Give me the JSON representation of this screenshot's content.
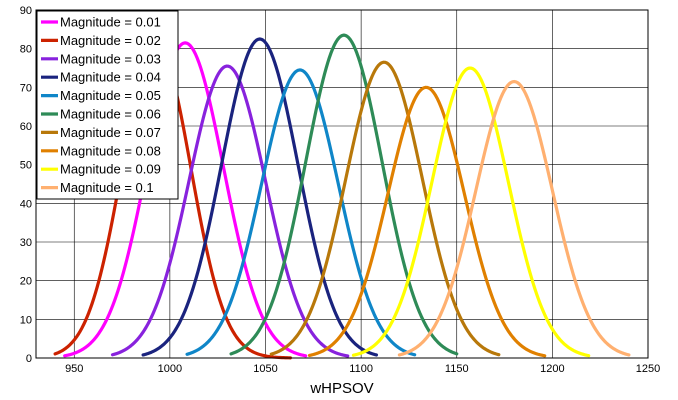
{
  "chart_data": {
    "type": "line",
    "title": "",
    "xlabel": "wHPSOV",
    "ylabel": "",
    "xlim": [
      930,
      1250
    ],
    "ylim": [
      0,
      90
    ],
    "xticks": [
      950,
      1000,
      1050,
      1100,
      1150,
      1200,
      1250
    ],
    "yticks": [
      0,
      10,
      20,
      30,
      40,
      50,
      60,
      70,
      80,
      90
    ],
    "grid": true,
    "legend_position": "top-left",
    "series": [
      {
        "name": "Magnitude = 0.01",
        "color": "#ff00ff",
        "peak_x": 1008,
        "peak_y": 81.5,
        "sigma": 20,
        "x_start": 945,
        "x_end": 1071
      },
      {
        "name": "Magnitude = 0.02",
        "color": "#cc2200",
        "peak_x": 993,
        "peak_y": 81,
        "sigma": 18,
        "x_start": 940,
        "x_end": 1063
      },
      {
        "name": "Magnitude = 0.03",
        "color": "#8822dd",
        "peak_x": 1030,
        "peak_y": 75.5,
        "sigma": 20,
        "x_start": 970,
        "x_end": 1093
      },
      {
        "name": "Magnitude = 0.04",
        "color": "#1a237e",
        "peak_x": 1047,
        "peak_y": 82.5,
        "sigma": 20,
        "x_start": 986,
        "x_end": 1108
      },
      {
        "name": "Magnitude = 0.05",
        "color": "#0f86c8",
        "peak_x": 1068,
        "peak_y": 74.5,
        "sigma": 20,
        "x_start": 1009,
        "x_end": 1128
      },
      {
        "name": "Magnitude = 0.06",
        "color": "#2e8b57",
        "peak_x": 1091,
        "peak_y": 83.5,
        "sigma": 20,
        "x_start": 1032,
        "x_end": 1150
      },
      {
        "name": "Magnitude = 0.07",
        "color": "#b8780a",
        "peak_x": 1112,
        "peak_y": 76.5,
        "sigma": 20,
        "x_start": 1053,
        "x_end": 1172
      },
      {
        "name": "Magnitude = 0.08",
        "color": "#e08000",
        "peak_x": 1134,
        "peak_y": 70,
        "sigma": 20,
        "x_start": 1073,
        "x_end": 1196
      },
      {
        "name": "Magnitude = 0.09",
        "color": "#ffff00",
        "peak_x": 1157,
        "peak_y": 75,
        "sigma": 20,
        "x_start": 1096,
        "x_end": 1219
      },
      {
        "name": "Magnitude = 0.1",
        "color": "#ffb070",
        "peak_x": 1180,
        "peak_y": 71.5,
        "sigma": 20,
        "x_start": 1120,
        "x_end": 1240
      }
    ]
  }
}
